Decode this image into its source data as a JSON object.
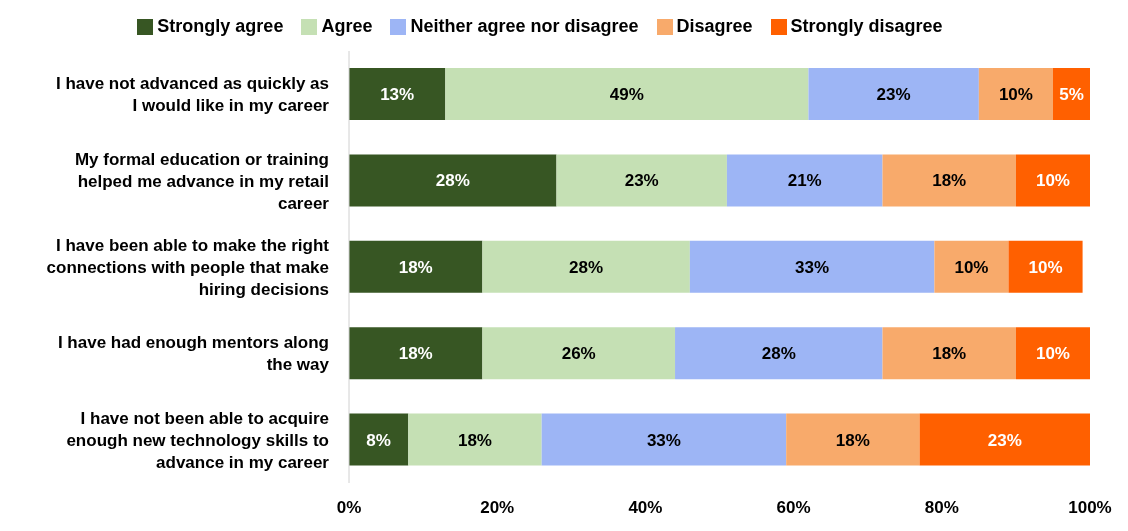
{
  "chart_data": {
    "type": "bar",
    "orientation": "horizontal",
    "stacked": true,
    "legend": "top",
    "grid": false,
    "categories": [
      "I have not advanced as quickly as I would like in my career",
      "My formal education or training helped me advance in my retail career",
      "I have been able to make the right connections with people that make hiring decisions",
      "I have had enough mentors along the way",
      "I have not been able to acquire enough new technology skills to advance in my career"
    ],
    "xlim": [
      0,
      100
    ],
    "xticks": [
      {
        "value": 0,
        "label": "0%"
      },
      {
        "value": 20,
        "label": "20%"
      },
      {
        "value": 40,
        "label": "40%"
      },
      {
        "value": 60,
        "label": "60%"
      },
      {
        "value": 80,
        "label": "80%"
      },
      {
        "value": 100,
        "label": "100%"
      }
    ],
    "series": [
      {
        "name": "Strongly agree",
        "color": "#375623",
        "values": [
          13,
          28,
          18,
          18,
          8
        ],
        "value_labels": [
          "13%",
          "28%",
          "18%",
          "18%",
          "8%"
        ]
      },
      {
        "name": "Agree",
        "color": "#c5e0b4",
        "values": [
          49,
          23,
          28,
          26,
          18
        ],
        "value_labels": [
          "49%",
          "23%",
          "28%",
          "26%",
          "18%"
        ]
      },
      {
        "name": "Neither agree nor disagree",
        "color": "#9db5f5",
        "values": [
          23,
          21,
          33,
          28,
          33
        ],
        "value_labels": [
          "23%",
          "21%",
          "33%",
          "28%",
          "33%"
        ]
      },
      {
        "name": "Disagree",
        "color": "#f8aa6b",
        "values": [
          10,
          18,
          10,
          18,
          18
        ],
        "value_labels": [
          "10%",
          "18%",
          "10%",
          "18%",
          "18%"
        ]
      },
      {
        "name": "Strongly disagree",
        "color": "#ff6000",
        "values": [
          5,
          10,
          10,
          10,
          23
        ],
        "value_labels": [
          "5%",
          "10%",
          "10%",
          "10%",
          "23%"
        ]
      }
    ]
  }
}
